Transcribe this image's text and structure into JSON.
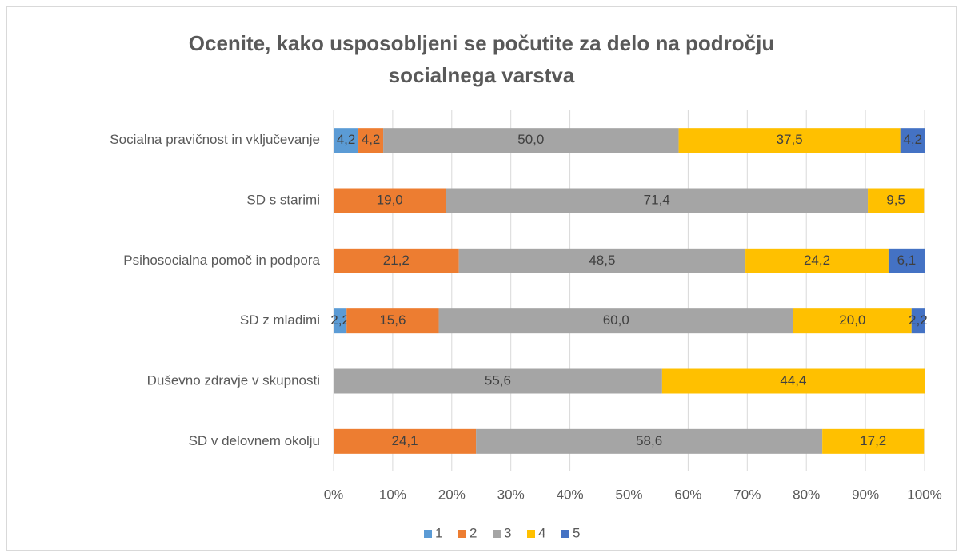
{
  "chart_data": {
    "type": "bar",
    "orientation": "horizontal",
    "stacked": true,
    "title": "Ocenite, kako usposobljeni se počutite za delo na področju socialnega varstva",
    "categories": [
      "Socialna pravičnost in vključevanje",
      "SD s starimi",
      "Psihosocialna pomoč in podpora",
      "SD z mladimi",
      "Duševno zdravje v skupnosti",
      "SD v delovnem okolju"
    ],
    "series": [
      {
        "name": "1",
        "color": "#5b9bd5",
        "values": [
          4.2,
          null,
          null,
          2.2,
          null,
          null
        ],
        "value_labels": [
          "4,2",
          null,
          null,
          "2,2",
          null,
          null
        ]
      },
      {
        "name": "2",
        "color": "#ed7d31",
        "values": [
          4.2,
          19.0,
          21.2,
          15.6,
          null,
          24.1
        ],
        "value_labels": [
          "4,2",
          "19,0",
          "21,2",
          "15,6",
          null,
          "24,1"
        ]
      },
      {
        "name": "3",
        "color": "#a5a5a5",
        "values": [
          50.0,
          71.4,
          48.5,
          60.0,
          55.6,
          58.6
        ],
        "value_labels": [
          "50,0",
          "71,4",
          "48,5",
          "60,0",
          "55,6",
          "58,6"
        ]
      },
      {
        "name": "4",
        "color": "#ffc000",
        "values": [
          37.5,
          9.5,
          24.2,
          20.0,
          44.4,
          17.2
        ],
        "value_labels": [
          "37,5",
          "9,5",
          "24,2",
          "20,0",
          "44,4",
          "17,2"
        ]
      },
      {
        "name": "5",
        "color": "#4472c4",
        "values": [
          4.2,
          null,
          6.1,
          2.2,
          null,
          null
        ],
        "value_labels": [
          "4,2",
          null,
          "6,1",
          "2,2",
          null,
          null
        ]
      }
    ],
    "xlim": [
      0,
      100
    ],
    "xticks": [
      {
        "value": 0,
        "label": "0%"
      },
      {
        "value": 10,
        "label": "10%"
      },
      {
        "value": 20,
        "label": "20%"
      },
      {
        "value": 30,
        "label": "30%"
      },
      {
        "value": 40,
        "label": "40%"
      },
      {
        "value": 50,
        "label": "50%"
      },
      {
        "value": 60,
        "label": "60%"
      },
      {
        "value": 70,
        "label": "70%"
      },
      {
        "value": 80,
        "label": "80%"
      },
      {
        "value": 90,
        "label": "90%"
      },
      {
        "value": 100,
        "label": "100%"
      }
    ],
    "grid": true,
    "legend": "bottom"
  }
}
